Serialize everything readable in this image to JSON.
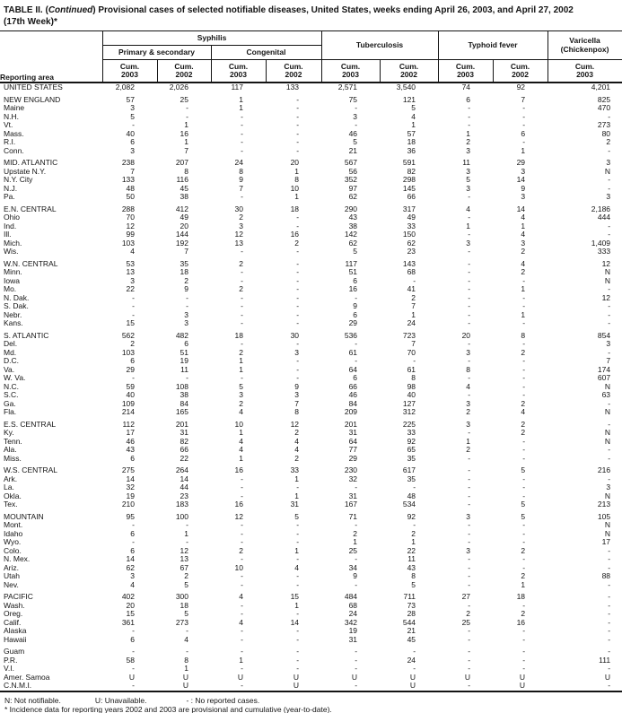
{
  "title": {
    "prefix": "TABLE II. (",
    "continued": "Continued",
    "suffix": ") Provisional cases of selected notifiable diseases, United States, weeks ending April 26, 2003, and April 27, 2002",
    "line2": "(17th Week)*"
  },
  "table": {
    "reporting_area_label": "Reporting area",
    "groups": {
      "syphilis": "Syphilis",
      "primary_secondary": "Primary & secondary",
      "congenital": "Congenital",
      "tuberculosis": "Tuberculosis",
      "typhoid_fever": "Typhoid fever",
      "varicella_line1": "Varicella",
      "varicella_line2": "(Chickenpox)"
    },
    "cum_label": "Cum.",
    "col_years": [
      "2003",
      "2002",
      "2003",
      "2002",
      "2003",
      "2002",
      "2003",
      "2002",
      "2003"
    ],
    "rows": [
      {
        "area": "UNITED STATES",
        "values": [
          "2,082",
          "2,026",
          "117",
          "133",
          "2,571",
          "3,540",
          "74",
          "92",
          "4,201"
        ]
      },
      {
        "gap": true
      },
      {
        "area": "NEW ENGLAND",
        "values": [
          "57",
          "25",
          "1",
          "-",
          "75",
          "121",
          "6",
          "7",
          "825"
        ]
      },
      {
        "area": "Maine",
        "values": [
          "3",
          "-",
          "1",
          "-",
          "-",
          "5",
          "-",
          "-",
          "470"
        ]
      },
      {
        "area": "N.H.",
        "values": [
          "5",
          "-",
          "-",
          "-",
          "3",
          "4",
          "-",
          "-",
          "-"
        ]
      },
      {
        "area": "Vt.",
        "values": [
          "-",
          "1",
          "-",
          "-",
          "-",
          "1",
          "-",
          "-",
          "273"
        ]
      },
      {
        "area": "Mass.",
        "values": [
          "40",
          "16",
          "-",
          "-",
          "46",
          "57",
          "1",
          "6",
          "80"
        ]
      },
      {
        "area": "R.I.",
        "values": [
          "6",
          "1",
          "-",
          "-",
          "5",
          "18",
          "2",
          "-",
          "2"
        ]
      },
      {
        "area": "Conn.",
        "values": [
          "3",
          "7",
          "-",
          "-",
          "21",
          "36",
          "3",
          "1",
          "-"
        ]
      },
      {
        "gap": true
      },
      {
        "area": "MID. ATLANTIC",
        "values": [
          "238",
          "207",
          "24",
          "20",
          "567",
          "591",
          "11",
          "29",
          "3"
        ]
      },
      {
        "area": "Upstate N.Y.",
        "values": [
          "7",
          "8",
          "8",
          "1",
          "56",
          "82",
          "3",
          "3",
          "N"
        ]
      },
      {
        "area": "N.Y. City",
        "values": [
          "133",
          "116",
          "9",
          "8",
          "352",
          "298",
          "5",
          "14",
          "-"
        ]
      },
      {
        "area": "N.J.",
        "values": [
          "48",
          "45",
          "7",
          "10",
          "97",
          "145",
          "3",
          "9",
          "-"
        ]
      },
      {
        "area": "Pa.",
        "values": [
          "50",
          "38",
          "-",
          "1",
          "62",
          "66",
          "-",
          "3",
          "3"
        ]
      },
      {
        "gap": true
      },
      {
        "area": "E.N. CENTRAL",
        "values": [
          "288",
          "412",
          "30",
          "18",
          "290",
          "317",
          "4",
          "14",
          "2,186"
        ]
      },
      {
        "area": "Ohio",
        "values": [
          "70",
          "49",
          "2",
          "-",
          "43",
          "49",
          "-",
          "4",
          "444"
        ]
      },
      {
        "area": "Ind.",
        "values": [
          "12",
          "20",
          "3",
          "-",
          "38",
          "33",
          "1",
          "1",
          "-"
        ]
      },
      {
        "area": "Ill.",
        "values": [
          "99",
          "144",
          "12",
          "16",
          "142",
          "150",
          "-",
          "4",
          "-"
        ]
      },
      {
        "area": "Mich.",
        "values": [
          "103",
          "192",
          "13",
          "2",
          "62",
          "62",
          "3",
          "3",
          "1,409"
        ]
      },
      {
        "area": "Wis.",
        "values": [
          "4",
          "7",
          "-",
          "-",
          "5",
          "23",
          "-",
          "2",
          "333"
        ]
      },
      {
        "gap": true
      },
      {
        "area": "W.N. CENTRAL",
        "values": [
          "53",
          "35",
          "2",
          "-",
          "117",
          "143",
          "-",
          "4",
          "12"
        ]
      },
      {
        "area": "Minn.",
        "values": [
          "13",
          "18",
          "-",
          "-",
          "51",
          "68",
          "-",
          "2",
          "N"
        ]
      },
      {
        "area": "Iowa",
        "values": [
          "3",
          "2",
          "-",
          "-",
          "6",
          "-",
          "-",
          "-",
          "N"
        ]
      },
      {
        "area": "Mo.",
        "values": [
          "22",
          "9",
          "2",
          "-",
          "16",
          "41",
          "-",
          "1",
          "-"
        ]
      },
      {
        "area": "N. Dak.",
        "values": [
          "-",
          "-",
          "-",
          "-",
          "-",
          "2",
          "-",
          "-",
          "12"
        ]
      },
      {
        "area": "S. Dak.",
        "values": [
          "-",
          "-",
          "-",
          "-",
          "9",
          "7",
          "-",
          "-",
          "-"
        ]
      },
      {
        "area": "Nebr.",
        "values": [
          "-",
          "3",
          "-",
          "-",
          "6",
          "1",
          "-",
          "1",
          "-"
        ]
      },
      {
        "area": "Kans.",
        "values": [
          "15",
          "3",
          "-",
          "-",
          "29",
          "24",
          "-",
          "-",
          "-"
        ]
      },
      {
        "gap": true
      },
      {
        "area": "S. ATLANTIC",
        "values": [
          "562",
          "482",
          "18",
          "30",
          "536",
          "723",
          "20",
          "8",
          "854"
        ]
      },
      {
        "area": "Del.",
        "values": [
          "2",
          "6",
          "-",
          "-",
          "-",
          "7",
          "-",
          "-",
          "3"
        ]
      },
      {
        "area": "Md.",
        "values": [
          "103",
          "51",
          "2",
          "3",
          "61",
          "70",
          "3",
          "2",
          "-"
        ]
      },
      {
        "area": "D.C.",
        "values": [
          "6",
          "19",
          "1",
          "-",
          "-",
          "-",
          "-",
          "-",
          "7"
        ]
      },
      {
        "area": "Va.",
        "values": [
          "29",
          "11",
          "1",
          "-",
          "64",
          "61",
          "8",
          "-",
          "174"
        ]
      },
      {
        "area": "W. Va.",
        "values": [
          "-",
          "-",
          "-",
          "-",
          "6",
          "8",
          "-",
          "-",
          "607"
        ]
      },
      {
        "area": "N.C.",
        "values": [
          "59",
          "108",
          "5",
          "9",
          "66",
          "98",
          "4",
          "-",
          "N"
        ]
      },
      {
        "area": "S.C.",
        "values": [
          "40",
          "38",
          "3",
          "3",
          "46",
          "40",
          "-",
          "-",
          "63"
        ]
      },
      {
        "area": "Ga.",
        "values": [
          "109",
          "84",
          "2",
          "7",
          "84",
          "127",
          "3",
          "2",
          "-"
        ]
      },
      {
        "area": "Fla.",
        "values": [
          "214",
          "165",
          "4",
          "8",
          "209",
          "312",
          "2",
          "4",
          "N"
        ]
      },
      {
        "gap": true
      },
      {
        "area": "E.S. CENTRAL",
        "values": [
          "112",
          "201",
          "10",
          "12",
          "201",
          "225",
          "3",
          "2",
          "-"
        ]
      },
      {
        "area": "Ky.",
        "values": [
          "17",
          "31",
          "1",
          "2",
          "31",
          "33",
          "-",
          "2",
          "N"
        ]
      },
      {
        "area": "Tenn.",
        "values": [
          "46",
          "82",
          "4",
          "4",
          "64",
          "92",
          "1",
          "-",
          "N"
        ]
      },
      {
        "area": "Ala.",
        "values": [
          "43",
          "66",
          "4",
          "4",
          "77",
          "65",
          "2",
          "-",
          "-"
        ]
      },
      {
        "area": "Miss.",
        "values": [
          "6",
          "22",
          "1",
          "2",
          "29",
          "35",
          "-",
          "-",
          "-"
        ]
      },
      {
        "gap": true
      },
      {
        "area": "W.S. CENTRAL",
        "values": [
          "275",
          "264",
          "16",
          "33",
          "230",
          "617",
          "-",
          "5",
          "216"
        ]
      },
      {
        "area": "Ark.",
        "values": [
          "14",
          "14",
          "-",
          "1",
          "32",
          "35",
          "-",
          "-",
          "-"
        ]
      },
      {
        "area": "La.",
        "values": [
          "32",
          "44",
          "-",
          "-",
          "-",
          "-",
          "-",
          "-",
          "3"
        ]
      },
      {
        "area": "Okla.",
        "values": [
          "19",
          "23",
          "-",
          "1",
          "31",
          "48",
          "-",
          "-",
          "N"
        ]
      },
      {
        "area": "Tex.",
        "values": [
          "210",
          "183",
          "16",
          "31",
          "167",
          "534",
          "-",
          "5",
          "213"
        ]
      },
      {
        "gap": true
      },
      {
        "area": "MOUNTAIN",
        "values": [
          "95",
          "100",
          "12",
          "5",
          "71",
          "92",
          "3",
          "5",
          "105"
        ]
      },
      {
        "area": "Mont.",
        "values": [
          "-",
          "-",
          "-",
          "-",
          "-",
          "-",
          "-",
          "-",
          "N"
        ]
      },
      {
        "area": "Idaho",
        "values": [
          "6",
          "1",
          "-",
          "-",
          "2",
          "2",
          "-",
          "-",
          "N"
        ]
      },
      {
        "area": "Wyo.",
        "values": [
          "-",
          "-",
          "-",
          "-",
          "1",
          "1",
          "-",
          "-",
          "17"
        ]
      },
      {
        "area": "Colo.",
        "values": [
          "6",
          "12",
          "2",
          "1",
          "25",
          "22",
          "3",
          "2",
          "-"
        ]
      },
      {
        "area": "N. Mex.",
        "values": [
          "14",
          "13",
          "-",
          "-",
          "-",
          "11",
          "-",
          "-",
          "-"
        ]
      },
      {
        "area": "Ariz.",
        "values": [
          "62",
          "67",
          "10",
          "4",
          "34",
          "43",
          "-",
          "-",
          "-"
        ]
      },
      {
        "area": "Utah",
        "values": [
          "3",
          "2",
          "-",
          "-",
          "9",
          "8",
          "-",
          "2",
          "88"
        ]
      },
      {
        "area": "Nev.",
        "values": [
          "4",
          "5",
          "-",
          "-",
          "-",
          "5",
          "-",
          "1",
          "-"
        ]
      },
      {
        "gap": true
      },
      {
        "area": "PACIFIC",
        "values": [
          "402",
          "300",
          "4",
          "15",
          "484",
          "711",
          "27",
          "18",
          "-"
        ]
      },
      {
        "area": "Wash.",
        "values": [
          "20",
          "18",
          "-",
          "1",
          "68",
          "73",
          "-",
          "-",
          "-"
        ]
      },
      {
        "area": "Oreg.",
        "values": [
          "15",
          "5",
          "-",
          "-",
          "24",
          "28",
          "2",
          "2",
          "-"
        ]
      },
      {
        "area": "Calif.",
        "values": [
          "361",
          "273",
          "4",
          "14",
          "342",
          "544",
          "25",
          "16",
          "-"
        ]
      },
      {
        "area": "Alaska",
        "values": [
          "-",
          "-",
          "-",
          "-",
          "19",
          "21",
          "-",
          "-",
          "-"
        ]
      },
      {
        "area": "Hawaii",
        "values": [
          "6",
          "4",
          "-",
          "-",
          "31",
          "45",
          "-",
          "-",
          "-"
        ]
      },
      {
        "gap": true
      },
      {
        "area": "Guam",
        "values": [
          "-",
          "-",
          "-",
          "-",
          "-",
          "-",
          "-",
          "-",
          "-"
        ]
      },
      {
        "area": "P.R.",
        "values": [
          "58",
          "8",
          "1",
          "-",
          "-",
          "24",
          "-",
          "-",
          "111"
        ]
      },
      {
        "area": "V.I.",
        "values": [
          "-",
          "1",
          "-",
          "-",
          "-",
          "-",
          "-",
          "-",
          "-"
        ]
      },
      {
        "area": "Amer. Samoa",
        "values": [
          "U",
          "U",
          "U",
          "U",
          "U",
          "U",
          "U",
          "U",
          "U"
        ]
      },
      {
        "area": "C.N.M.I.",
        "values": [
          "-",
          "U",
          "-",
          "U",
          "-",
          "U",
          "-",
          "U",
          "-"
        ]
      }
    ]
  },
  "footnotes": {
    "not_notifiable": "N: Not notifiable.",
    "unavailable": "U: Unavailable.",
    "no_reported_cases": "- : No reported cases.",
    "incidence_note": "* Incidence data for reporting years 2002 and 2003 are provisional and cumulative (year-to-date)."
  }
}
